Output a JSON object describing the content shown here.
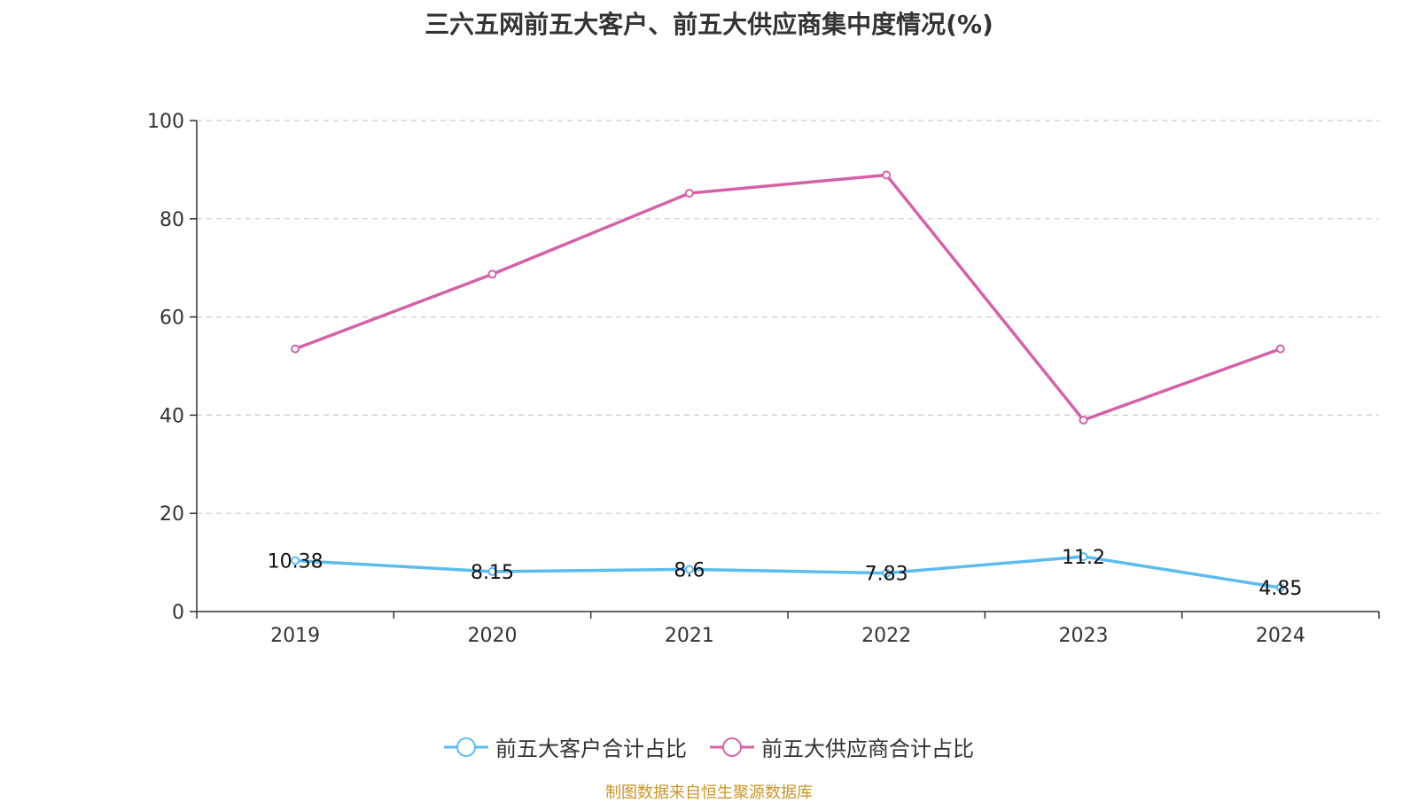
{
  "chart_data": {
    "type": "line",
    "title": "三六五网前五大客户、前五大供应商集中度情况(%)",
    "categories": [
      "2019",
      "2020",
      "2021",
      "2022",
      "2023",
      "2024"
    ],
    "ylim": [
      0,
      100
    ],
    "yticks": [
      0,
      20,
      40,
      60,
      80,
      100
    ],
    "grid": true,
    "legend_position": "bottom",
    "series": [
      {
        "name": "前五大客户合计占比",
        "color": "#5bbcf0",
        "values": [
          10.38,
          8.15,
          8.6,
          7.83,
          11.2,
          4.85
        ],
        "labels": [
          "10.38",
          "8.15",
          "8.6",
          "7.83",
          "11.2",
          "4.85"
        ]
      },
      {
        "name": "前五大供应商合计占比",
        "color": "#d462a8",
        "values": [
          53.5,
          68.7,
          85.2,
          88.9,
          39.0,
          53.5
        ],
        "labels": []
      }
    ],
    "source": "制图数据来自恒生聚源数据库",
    "source_color": "#c9962a"
  }
}
